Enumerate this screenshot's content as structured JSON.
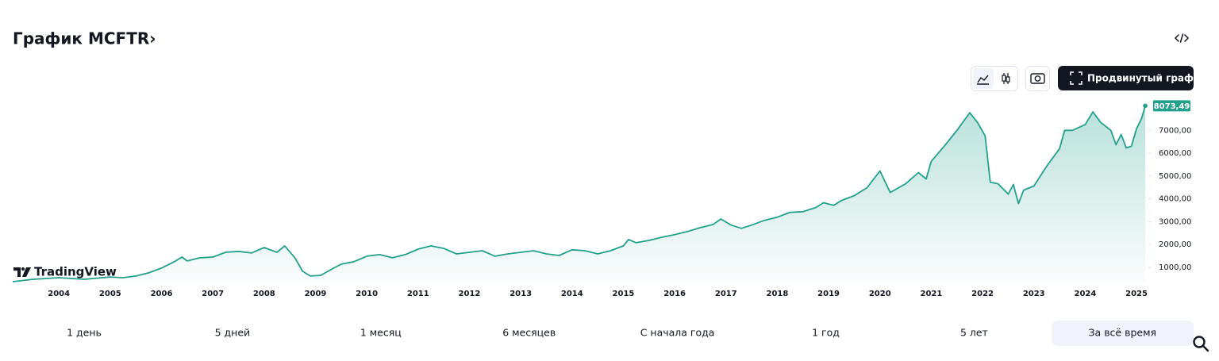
{
  "header": {
    "title": "График MCFTR›"
  },
  "toolbar": {
    "advanced_button": "Продвинутый график"
  },
  "chart_data": {
    "type": "area",
    "watermark": "TradingView",
    "color": "#22a08c",
    "x": [
      2003.1,
      2003.5,
      2004.0,
      2004.5,
      2005.0,
      2005.25,
      2005.5,
      2005.75,
      2006.0,
      2006.25,
      2006.4,
      2006.5,
      2006.75,
      2007.0,
      2007.25,
      2007.5,
      2007.75,
      2008.0,
      2008.25,
      2008.4,
      2008.6,
      2008.75,
      2008.9,
      2009.1,
      2009.3,
      2009.5,
      2009.75,
      2010.0,
      2010.25,
      2010.5,
      2010.75,
      2011.0,
      2011.25,
      2011.5,
      2011.75,
      2012.0,
      2012.25,
      2012.5,
      2012.75,
      2013.0,
      2013.25,
      2013.5,
      2013.75,
      2014.0,
      2014.25,
      2014.5,
      2014.75,
      2015.0,
      2015.1,
      2015.25,
      2015.5,
      2015.75,
      2016.0,
      2016.25,
      2016.5,
      2016.75,
      2016.9,
      2017.1,
      2017.3,
      2017.5,
      2017.75,
      2018.0,
      2018.25,
      2018.5,
      2018.75,
      2018.9,
      2019.1,
      2019.25,
      2019.5,
      2019.75,
      2020.0,
      2020.2,
      2020.5,
      2020.75,
      2020.9,
      2021.0,
      2021.25,
      2021.5,
      2021.75,
      2021.9,
      2022.05,
      2022.15,
      2022.3,
      2022.5,
      2022.6,
      2022.7,
      2022.8,
      2023.0,
      2023.25,
      2023.5,
      2023.6,
      2023.75,
      2024.0,
      2024.15,
      2024.3,
      2024.5,
      2024.6,
      2024.7,
      2024.8,
      2024.9,
      2025.0,
      2025.1,
      2025.17
    ],
    "values": [
      375,
      480,
      550,
      480,
      580,
      550,
      620,
      760,
      970,
      1250,
      1450,
      1280,
      1420,
      1450,
      1660,
      1700,
      1630,
      1870,
      1660,
      1940,
      1420,
      830,
      620,
      650,
      900,
      1140,
      1250,
      1490,
      1560,
      1420,
      1560,
      1800,
      1940,
      1830,
      1590,
      1660,
      1730,
      1490,
      1590,
      1660,
      1730,
      1590,
      1520,
      1770,
      1730,
      1590,
      1730,
      1940,
      2220,
      2080,
      2180,
      2320,
      2430,
      2570,
      2740,
      2880,
      3120,
      2850,
      2710,
      2850,
      3060,
      3200,
      3410,
      3440,
      3620,
      3830,
      3720,
      3930,
      4140,
      4490,
      5220,
      4280,
      4660,
      5150,
      4870,
      5640,
      6300,
      7000,
      7770,
      7350,
      6760,
      4730,
      4660,
      4210,
      4630,
      3790,
      4380,
      4560,
      5430,
      6200,
      7000,
      7000,
      7250,
      7810,
      7350,
      7000,
      6370,
      6820,
      6230,
      6300,
      7070,
      7530,
      8073.49
    ],
    "value_labels": [
      null,
      null,
      null,
      null,
      null,
      null,
      null,
      null,
      null,
      null,
      null,
      null,
      null,
      null,
      null,
      null,
      null,
      null,
      null,
      null,
      null,
      null,
      null,
      null,
      null,
      null,
      null,
      null,
      null,
      null,
      null,
      null,
      null,
      null,
      null,
      null,
      null,
      null,
      null,
      null,
      null,
      null,
      null,
      null,
      null,
      null,
      null,
      null,
      null,
      null,
      null,
      null,
      null,
      null,
      null,
      null,
      null,
      null,
      null,
      null,
      null,
      null,
      null,
      null,
      null,
      null,
      null,
      null,
      null,
      null,
      null,
      null,
      null,
      null,
      null,
      null,
      null,
      null,
      null,
      null,
      null,
      null,
      null,
      null,
      null,
      null,
      null,
      null,
      null,
      null,
      null,
      null,
      null,
      null,
      null,
      null,
      null,
      null,
      null,
      null,
      null,
      null,
      "8073,49"
    ],
    "xlim": [
      2003.1,
      2025.2
    ],
    "xticks": [
      2004,
      2005,
      2006,
      2007,
      2008,
      2009,
      2010,
      2011,
      2012,
      2013,
      2014,
      2015,
      2016,
      2017,
      2018,
      2019,
      2020,
      2021,
      2022,
      2023,
      2024,
      2025
    ],
    "ylim": [
      340,
      8260
    ],
    "yticks": [
      {
        "value": 1000,
        "label": "1000,00"
      },
      {
        "value": 2000,
        "label": "2000,00"
      },
      {
        "value": 3000,
        "label": "3000,00"
      },
      {
        "value": 4000,
        "label": "4000,00"
      },
      {
        "value": 5000,
        "label": "5000,00"
      },
      {
        "value": 6000,
        "label": "6000,00"
      },
      {
        "value": 7000,
        "label": "7000,00"
      }
    ]
  },
  "ranges": {
    "options": [
      "1 день",
      "5 дней",
      "1 месяц",
      "6 месяцев",
      "С начала года",
      "1 год",
      "5 лет",
      "За всё время"
    ],
    "selected": 7
  }
}
